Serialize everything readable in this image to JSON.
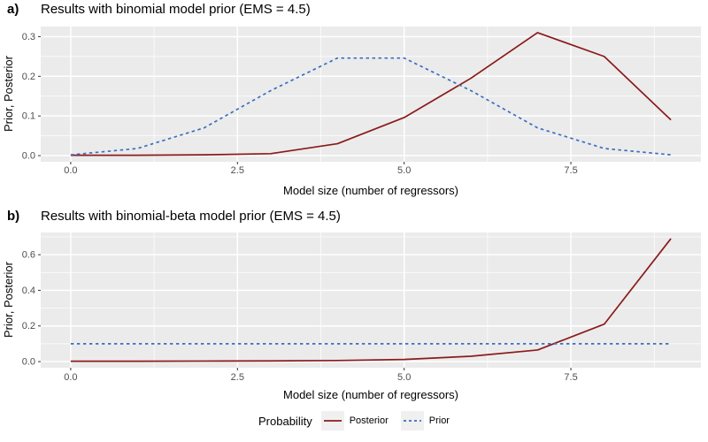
{
  "legend": {
    "title": "Probability",
    "key_bg": "#F0F0F0",
    "items": [
      {
        "label": "Posterior",
        "color": "#8B1A1A",
        "style": "solid"
      },
      {
        "label": "Prior",
        "color": "#3B6EBF",
        "style": "dashed"
      }
    ]
  },
  "chart_data": [
    {
      "type": "line",
      "panel_label": "a)",
      "title": "Results with binomial model prior (EMS = 4.5)",
      "xlabel": "Model size (number of regressors)",
      "ylabel": "Prior, Posterior",
      "x": [
        0,
        1,
        2,
        3,
        4,
        5,
        6,
        7,
        8,
        9
      ],
      "series": [
        {
          "name": "Posterior",
          "style": "solid",
          "color": "#8B1A1A",
          "values": [
            0.001,
            0.001,
            0.002,
            0.005,
            0.03,
            0.096,
            0.195,
            0.31,
            0.25,
            0.09
          ]
        },
        {
          "name": "Prior",
          "style": "dashed",
          "color": "#3B6EBF",
          "values": [
            0.002,
            0.018,
            0.07,
            0.164,
            0.246,
            0.246,
            0.164,
            0.07,
            0.018,
            0.002
          ]
        }
      ],
      "xlim": [
        -0.45,
        9.45
      ],
      "ylim": [
        -0.0155,
        0.3255
      ],
      "x_ticks": {
        "values": [
          0,
          2.5,
          5,
          7.5
        ],
        "labels": [
          "0.0",
          "2.5",
          "5.0",
          "7.5"
        ],
        "minor": [
          1.25,
          3.75,
          6.25,
          8.75
        ]
      },
      "y_ticks": {
        "values": [
          0,
          0.1,
          0.2,
          0.3
        ],
        "labels": [
          "0.0",
          "0.1",
          "0.2",
          "0.3"
        ],
        "minor": [
          0.05,
          0.15,
          0.25
        ]
      },
      "grid": true,
      "legend_position": "bottom",
      "panel_bg": "#EBEBEB",
      "grid_color": "#FFFFFF",
      "tick_text_color": "#4D4D4D",
      "tick_mark_color": "#333333"
    },
    {
      "type": "line",
      "panel_label": "b)",
      "title": "Results with binomial-beta model prior (EMS = 4.5)",
      "xlabel": "Model size (number of regressors)",
      "ylabel": "Prior, Posterior",
      "x": [
        0,
        1,
        2,
        3,
        4,
        5,
        6,
        7,
        8,
        9
      ],
      "series": [
        {
          "name": "Posterior",
          "style": "solid",
          "color": "#8B1A1A",
          "values": [
            0.002,
            0.002,
            0.003,
            0.004,
            0.006,
            0.012,
            0.03,
            0.065,
            0.21,
            0.69
          ]
        },
        {
          "name": "Prior",
          "style": "dashed",
          "color": "#3B6EBF",
          "values": [
            0.1,
            0.1,
            0.1,
            0.1,
            0.1,
            0.1,
            0.1,
            0.1,
            0.1,
            0.1
          ]
        }
      ],
      "xlim": [
        -0.45,
        9.45
      ],
      "ylim": [
        -0.0345,
        0.7245
      ],
      "x_ticks": {
        "values": [
          0,
          2.5,
          5,
          7.5
        ],
        "labels": [
          "0.0",
          "2.5",
          "5.0",
          "7.5"
        ],
        "minor": [
          1.25,
          3.75,
          6.25,
          8.75
        ]
      },
      "y_ticks": {
        "values": [
          0,
          0.2,
          0.4,
          0.6
        ],
        "labels": [
          "0.0",
          "0.2",
          "0.4",
          "0.6"
        ],
        "minor": [
          0.1,
          0.3,
          0.5,
          0.7
        ]
      },
      "grid": true,
      "legend_position": "bottom",
      "panel_bg": "#EBEBEB",
      "grid_color": "#FFFFFF",
      "tick_text_color": "#4D4D4D",
      "tick_mark_color": "#333333"
    }
  ]
}
